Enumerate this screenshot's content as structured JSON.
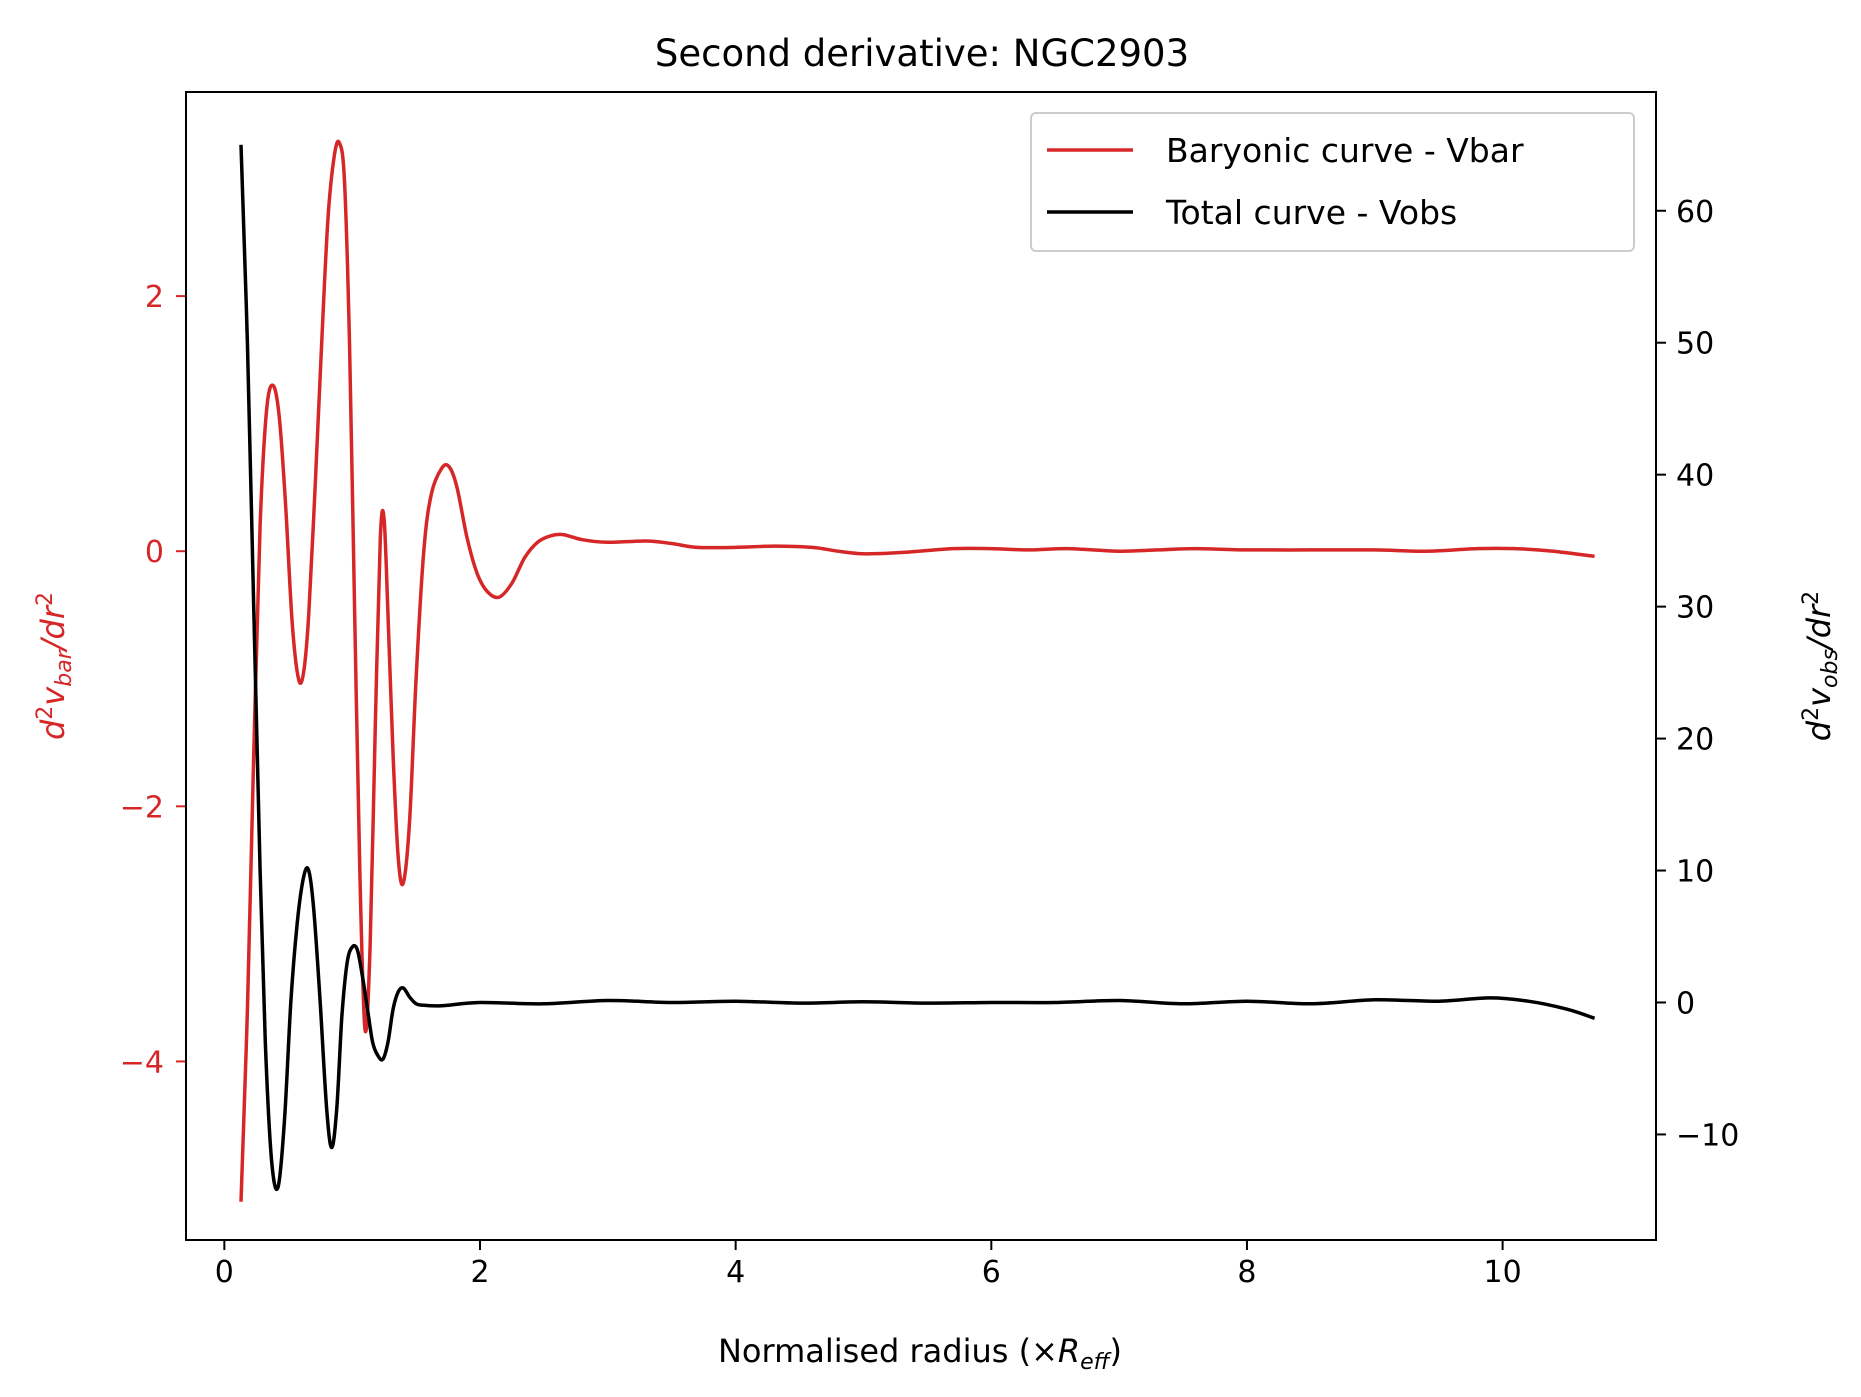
{
  "chart_data": {
    "type": "line",
    "title": "Second derivative: NGC2903",
    "xlabel": {
      "main": "Normalised radius (×",
      "symbol": "R",
      "sub": "eff",
      "end": ")"
    },
    "ylabel_left": {
      "d": "d",
      "sup": "2",
      "v": "v",
      "sub": "bar",
      "slash": "/",
      "dr": "dr",
      "sup2": "2"
    },
    "ylabel_right": {
      "d": "d",
      "sup": "2",
      "v": "v",
      "sub": "obs",
      "slash": "/",
      "dr": "dr",
      "sup2": "2"
    },
    "xlim": [
      -0.3,
      11.2
    ],
    "ylim_left": [
      -5.4,
      3.6
    ],
    "ylim_right": [
      -18,
      69
    ],
    "x_ticks": [
      0,
      2,
      4,
      6,
      8,
      10
    ],
    "x_tick_labels": [
      "0",
      "2",
      "4",
      "6",
      "8",
      "10"
    ],
    "y_left_ticks": [
      -4,
      -2,
      0,
      2
    ],
    "y_left_tick_labels": [
      "−4",
      "−2",
      "0",
      "2"
    ],
    "y_right_ticks": [
      -10,
      0,
      10,
      20,
      30,
      40,
      50,
      60
    ],
    "y_right_tick_labels": [
      "−10",
      "0",
      "10",
      "20",
      "30",
      "40",
      "50",
      "60"
    ],
    "grid": false,
    "legend_position": "top-right",
    "series": [
      {
        "name": "Baryonic curve - Vbar",
        "axis": "left",
        "color": "#d62728",
        "points": [
          [
            0.13,
            -5.1
          ],
          [
            0.18,
            -3.6
          ],
          [
            0.23,
            -1.6
          ],
          [
            0.28,
            0.2
          ],
          [
            0.33,
            1.1
          ],
          [
            0.38,
            1.3
          ],
          [
            0.43,
            1.05
          ],
          [
            0.48,
            0.35
          ],
          [
            0.53,
            -0.55
          ],
          [
            0.58,
            -1.0
          ],
          [
            0.62,
            -0.95
          ],
          [
            0.66,
            -0.5
          ],
          [
            0.71,
            0.5
          ],
          [
            0.76,
            1.6
          ],
          [
            0.81,
            2.6
          ],
          [
            0.86,
            3.1
          ],
          [
            0.9,
            3.2
          ],
          [
            0.94,
            2.9
          ],
          [
            0.98,
            1.6
          ],
          [
            1.02,
            -0.5
          ],
          [
            1.06,
            -2.5
          ],
          [
            1.1,
            -3.75
          ],
          [
            1.14,
            -3.1
          ],
          [
            1.18,
            -1.4
          ],
          [
            1.22,
            0.1
          ],
          [
            1.25,
            0.25
          ],
          [
            1.28,
            -0.5
          ],
          [
            1.32,
            -1.6
          ],
          [
            1.36,
            -2.4
          ],
          [
            1.4,
            -2.6
          ],
          [
            1.45,
            -2.1
          ],
          [
            1.5,
            -1.0
          ],
          [
            1.56,
            0.0
          ],
          [
            1.62,
            0.45
          ],
          [
            1.7,
            0.65
          ],
          [
            1.76,
            0.66
          ],
          [
            1.82,
            0.5
          ],
          [
            1.9,
            0.1
          ],
          [
            1.98,
            -0.18
          ],
          [
            2.06,
            -0.32
          ],
          [
            2.15,
            -0.36
          ],
          [
            2.25,
            -0.25
          ],
          [
            2.35,
            -0.05
          ],
          [
            2.45,
            0.07
          ],
          [
            2.55,
            0.12
          ],
          [
            2.65,
            0.13
          ],
          [
            2.8,
            0.09
          ],
          [
            3.0,
            0.07
          ],
          [
            3.3,
            0.08
          ],
          [
            3.5,
            0.06
          ],
          [
            3.7,
            0.03
          ],
          [
            4.0,
            0.03
          ],
          [
            4.3,
            0.04
          ],
          [
            4.6,
            0.03
          ],
          [
            4.8,
            0.0
          ],
          [
            5.0,
            -0.02
          ],
          [
            5.3,
            -0.01
          ],
          [
            5.7,
            0.02
          ],
          [
            6.0,
            0.02
          ],
          [
            6.3,
            0.01
          ],
          [
            6.6,
            0.02
          ],
          [
            7.0,
            0.0
          ],
          [
            7.3,
            0.01
          ],
          [
            7.6,
            0.02
          ],
          [
            8.0,
            0.01
          ],
          [
            8.5,
            0.01
          ],
          [
            9.0,
            0.01
          ],
          [
            9.4,
            0.0
          ],
          [
            9.8,
            0.02
          ],
          [
            10.1,
            0.02
          ],
          [
            10.4,
            0.0
          ],
          [
            10.72,
            -0.04
          ]
        ]
      },
      {
        "name": "Total curve - Vobs",
        "axis": "right",
        "color": "#000000",
        "points": [
          [
            0.13,
            65
          ],
          [
            0.18,
            50
          ],
          [
            0.23,
            30
          ],
          [
            0.28,
            10
          ],
          [
            0.32,
            -3
          ],
          [
            0.37,
            -12
          ],
          [
            0.42,
            -14
          ],
          [
            0.47,
            -9
          ],
          [
            0.52,
            0
          ],
          [
            0.57,
            6
          ],
          [
            0.62,
            9.5
          ],
          [
            0.66,
            10
          ],
          [
            0.7,
            7
          ],
          [
            0.75,
            0
          ],
          [
            0.8,
            -8
          ],
          [
            0.84,
            -11
          ],
          [
            0.88,
            -8
          ],
          [
            0.92,
            -1
          ],
          [
            0.96,
            3
          ],
          [
            1.0,
            4.2
          ],
          [
            1.04,
            4
          ],
          [
            1.08,
            2
          ],
          [
            1.12,
            -0.5
          ],
          [
            1.16,
            -3
          ],
          [
            1.2,
            -4
          ],
          [
            1.24,
            -4.3
          ],
          [
            1.28,
            -3
          ],
          [
            1.32,
            -0.5
          ],
          [
            1.36,
            0.8
          ],
          [
            1.4,
            1.1
          ],
          [
            1.45,
            0.4
          ],
          [
            1.5,
            -0.1
          ],
          [
            1.55,
            -0.2
          ],
          [
            1.7,
            -0.25
          ],
          [
            2.0,
            0.0
          ],
          [
            2.5,
            -0.1
          ],
          [
            3.0,
            0.15
          ],
          [
            3.5,
            0.0
          ],
          [
            4.0,
            0.1
          ],
          [
            4.5,
            -0.05
          ],
          [
            5.0,
            0.05
          ],
          [
            5.5,
            -0.05
          ],
          [
            6.0,
            0.0
          ],
          [
            6.5,
            0.0
          ],
          [
            7.0,
            0.15
          ],
          [
            7.5,
            -0.1
          ],
          [
            8.0,
            0.1
          ],
          [
            8.5,
            -0.1
          ],
          [
            9.0,
            0.2
          ],
          [
            9.5,
            0.1
          ],
          [
            9.9,
            0.35
          ],
          [
            10.2,
            0.1
          ],
          [
            10.5,
            -0.5
          ],
          [
            10.72,
            -1.2
          ]
        ]
      }
    ]
  }
}
